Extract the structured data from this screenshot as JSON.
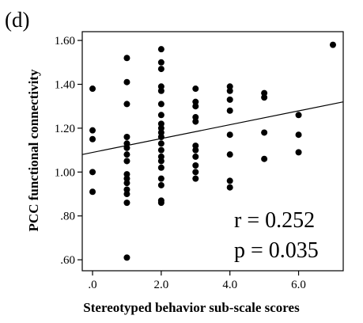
{
  "panel_label": "(d)",
  "chart_data": {
    "type": "scatter",
    "title": "",
    "xlabel": "Stereotyped behavior sub-scale scores",
    "ylabel": "PCC functional connectivity",
    "xlim": [
      -0.3,
      7.3
    ],
    "ylim": [
      0.55,
      1.64
    ],
    "x_ticks": [
      0,
      2,
      4,
      6
    ],
    "x_tick_labels": [
      ".0",
      "2.0",
      "4.0",
      "6.0"
    ],
    "y_ticks": [
      0.6,
      0.8,
      1.0,
      1.2,
      1.4,
      1.6
    ],
    "y_tick_labels": [
      ".60",
      ".80",
      "1.00",
      "1.20",
      "1.40",
      "1.60"
    ],
    "grid": false,
    "legend": "none",
    "fit_line": {
      "x": [
        -0.3,
        7.3
      ],
      "y": [
        1.08,
        1.32
      ]
    },
    "annotations": [
      "r = 0.252",
      "p = 0.035"
    ],
    "points": [
      {
        "x": 0,
        "y": 1.38
      },
      {
        "x": 0,
        "y": 1.19
      },
      {
        "x": 0,
        "y": 1.15
      },
      {
        "x": 0,
        "y": 1.0
      },
      {
        "x": 0,
        "y": 0.91
      },
      {
        "x": 1,
        "y": 1.52
      },
      {
        "x": 1,
        "y": 1.41
      },
      {
        "x": 1,
        "y": 1.31
      },
      {
        "x": 1,
        "y": 1.16
      },
      {
        "x": 1,
        "y": 1.13
      },
      {
        "x": 1,
        "y": 1.11
      },
      {
        "x": 1,
        "y": 1.08
      },
      {
        "x": 1,
        "y": 1.05
      },
      {
        "x": 1,
        "y": 0.99
      },
      {
        "x": 1,
        "y": 0.97
      },
      {
        "x": 1,
        "y": 0.95
      },
      {
        "x": 1,
        "y": 0.92
      },
      {
        "x": 1,
        "y": 0.9
      },
      {
        "x": 1,
        "y": 0.86
      },
      {
        "x": 1,
        "y": 0.61
      },
      {
        "x": 2,
        "y": 1.56
      },
      {
        "x": 2,
        "y": 1.5
      },
      {
        "x": 2,
        "y": 1.47
      },
      {
        "x": 2,
        "y": 1.39
      },
      {
        "x": 2,
        "y": 1.37
      },
      {
        "x": 2,
        "y": 1.31
      },
      {
        "x": 2,
        "y": 1.26
      },
      {
        "x": 2,
        "y": 1.22
      },
      {
        "x": 2,
        "y": 1.2
      },
      {
        "x": 2,
        "y": 1.18
      },
      {
        "x": 2,
        "y": 1.16
      },
      {
        "x": 2,
        "y": 1.13
      },
      {
        "x": 2,
        "y": 1.1
      },
      {
        "x": 2,
        "y": 1.07
      },
      {
        "x": 2,
        "y": 1.05
      },
      {
        "x": 2,
        "y": 1.02
      },
      {
        "x": 2,
        "y": 0.97
      },
      {
        "x": 2,
        "y": 0.94
      },
      {
        "x": 2,
        "y": 0.87
      },
      {
        "x": 2,
        "y": 0.86
      },
      {
        "x": 3,
        "y": 1.38
      },
      {
        "x": 3,
        "y": 1.32
      },
      {
        "x": 3,
        "y": 1.3
      },
      {
        "x": 3,
        "y": 1.25
      },
      {
        "x": 3,
        "y": 1.23
      },
      {
        "x": 3,
        "y": 1.12
      },
      {
        "x": 3,
        "y": 1.1
      },
      {
        "x": 3,
        "y": 1.07
      },
      {
        "x": 3,
        "y": 1.03
      },
      {
        "x": 3,
        "y": 1.0
      },
      {
        "x": 3,
        "y": 0.97
      },
      {
        "x": 4,
        "y": 1.39
      },
      {
        "x": 4,
        "y": 1.37
      },
      {
        "x": 4,
        "y": 1.33
      },
      {
        "x": 4,
        "y": 1.28
      },
      {
        "x": 4,
        "y": 1.17
      },
      {
        "x": 4,
        "y": 1.08
      },
      {
        "x": 4,
        "y": 0.96
      },
      {
        "x": 4,
        "y": 0.93
      },
      {
        "x": 5,
        "y": 1.36
      },
      {
        "x": 5,
        "y": 1.34
      },
      {
        "x": 5,
        "y": 1.18
      },
      {
        "x": 5,
        "y": 1.06
      },
      {
        "x": 6,
        "y": 1.26
      },
      {
        "x": 6,
        "y": 1.17
      },
      {
        "x": 6,
        "y": 1.09
      },
      {
        "x": 7,
        "y": 1.58
      }
    ]
  }
}
